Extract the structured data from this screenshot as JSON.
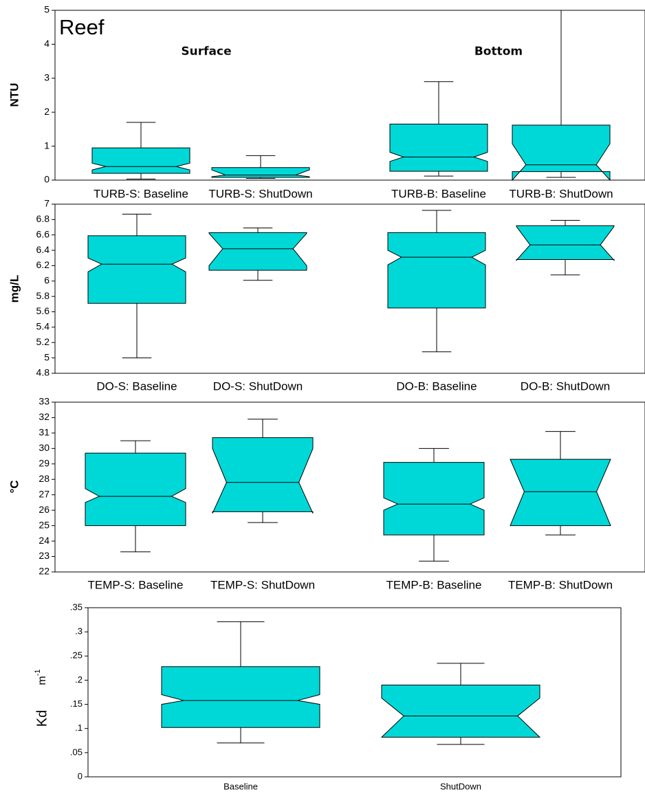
{
  "chart_data": [
    {
      "type": "box",
      "ylabel": "NTU",
      "color": "#00d8d8",
      "annotations": [
        "Reef",
        "Surface",
        "Bottom"
      ],
      "categories": [
        "TURB-S: Baseline",
        "TURB-S: ShutDown",
        "TURB-B: Baseline",
        "TURB-B: ShutDown"
      ],
      "boxes": [
        {
          "low": 0.03,
          "q1": 0.2,
          "median": 0.4,
          "q3": 0.95,
          "high": 1.7,
          "notch_low": 0.3,
          "notch_high": 0.5
        },
        {
          "low": 0.05,
          "q1": 0.08,
          "median": 0.15,
          "q3": 0.37,
          "high": 0.72,
          "notch_low": 0.1,
          "notch_high": 0.3
        },
        {
          "low": 0.12,
          "q1": 0.26,
          "median": 0.68,
          "q3": 1.65,
          "high": 2.9,
          "notch_low": 0.55,
          "notch_high": 0.82
        },
        {
          "low": 0.08,
          "q1": 0.25,
          "median": 0.45,
          "q3": 1.62,
          "high": 5,
          "notch_low": 0,
          "notch_high": 1.07
        }
      ],
      "ylim": [
        0,
        5
      ],
      "yticks": [
        0,
        1,
        2,
        3,
        4,
        5
      ]
    },
    {
      "type": "box",
      "ylabel": "mg/L",
      "color": "#00d8d8",
      "categories": [
        "DO-S: Baseline",
        "DO-S: ShutDown",
        "DO-B: Baseline",
        "DO-B: ShutDown"
      ],
      "boxes": [
        {
          "low": 5.0,
          "q1": 5.71,
          "median": 6.22,
          "q3": 6.59,
          "high": 6.87,
          "notch_low": 6.12,
          "notch_high": 6.3
        },
        {
          "low": 6.01,
          "q1": 6.14,
          "median": 6.42,
          "q3": 6.63,
          "high": 6.69,
          "notch_low": 6.2,
          "notch_high": 6.62
        },
        {
          "low": 5.08,
          "q1": 5.65,
          "median": 6.31,
          "q3": 6.63,
          "high": 6.92,
          "notch_low": 6.21,
          "notch_high": 6.4
        },
        {
          "low": 6.08,
          "q1": 6.28,
          "median": 6.47,
          "q3": 6.72,
          "high": 6.79,
          "notch_low": 6.27,
          "notch_high": 6.71
        }
      ],
      "ylim": [
        4.8,
        7
      ],
      "yticks": [
        4.8,
        5,
        5.2,
        5.4,
        5.6,
        5.8,
        6,
        6.2,
        6.4,
        6.6,
        6.8,
        7
      ]
    },
    {
      "type": "box",
      "ylabel": "°C",
      "color": "#00d8d8",
      "categories": [
        "TEMP-S: Baseline",
        "TEMP-S: ShutDown",
        "TEMP-B: Baseline",
        "TEMP-B: ShutDown"
      ],
      "boxes": [
        {
          "low": 23.3,
          "q1": 25.0,
          "median": 26.9,
          "q3": 29.7,
          "high": 30.5,
          "notch_low": 26.5,
          "notch_high": 27.4
        },
        {
          "low": 25.2,
          "q1": 25.9,
          "median": 27.8,
          "q3": 30.7,
          "high": 31.9,
          "notch_low": 25.8,
          "notch_high": 30.0
        },
        {
          "low": 22.7,
          "q1": 24.4,
          "median": 26.4,
          "q3": 29.1,
          "high": 30.0,
          "notch_low": 26.0,
          "notch_high": 26.8
        },
        {
          "low": 24.4,
          "q1": 25.0,
          "median": 27.2,
          "q3": 29.3,
          "high": 31.1,
          "notch_low": 25.0,
          "notch_high": 29.3
        }
      ],
      "ylim": [
        22,
        33
      ],
      "yticks": [
        22,
        23,
        24,
        25,
        26,
        27,
        28,
        29,
        30,
        31,
        32,
        33
      ]
    },
    {
      "type": "box",
      "ylabel": "Kd",
      "unit": "m",
      "unit_exponent": "-1",
      "color": "#00d8d8",
      "categories": [
        "Baseline",
        "ShutDown"
      ],
      "boxes": [
        {
          "low": 0.07,
          "q1": 0.102,
          "median": 0.158,
          "q3": 0.228,
          "high": 0.321,
          "notch_low": 0.15,
          "notch_high": 0.17
        },
        {
          "low": 0.067,
          "q1": 0.082,
          "median": 0.126,
          "q3": 0.19,
          "high": 0.235,
          "notch_low": 0.082,
          "notch_high": 0.163
        }
      ],
      "ylim": [
        0,
        0.35
      ],
      "yticks": [
        0,
        {
          "value": 0.05,
          "label": ".05"
        },
        {
          "value": 0.1,
          "label": ".1"
        },
        {
          "value": 0.15,
          "label": ".15"
        },
        {
          "value": 0.2,
          "label": ".2"
        },
        {
          "value": 0.25,
          "label": ".25"
        },
        {
          "value": 0.3,
          "label": ".3"
        },
        {
          "value": 0.35,
          "label": ".35"
        }
      ]
    }
  ]
}
